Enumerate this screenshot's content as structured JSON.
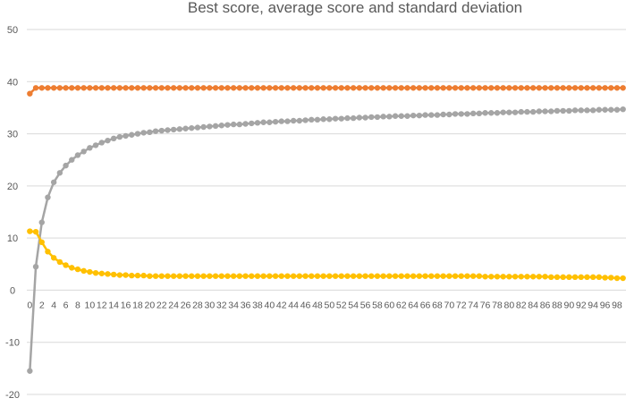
{
  "chart_data": {
    "type": "line",
    "title": "Best score, average score and standard deviation",
    "xlabel": "",
    "ylabel": "",
    "ylim": [
      -20,
      50
    ],
    "yticks": [
      -20,
      -10,
      0,
      10,
      20,
      30,
      40,
      50
    ],
    "grid": true,
    "legend": "none",
    "x_start": 0,
    "x_end": 99,
    "x_tick_labels": [
      "0",
      "2",
      "4",
      "6",
      "8",
      "10",
      "12",
      "14",
      "16",
      "18",
      "20",
      "22",
      "24",
      "26",
      "28",
      "30",
      "32",
      "34",
      "36",
      "38",
      "40",
      "42",
      "44",
      "46",
      "48",
      "50",
      "52",
      "54",
      "56",
      "58",
      "60",
      "62",
      "64",
      "66",
      "68",
      "70",
      "72",
      "74",
      "76",
      "78",
      "80",
      "82",
      "84",
      "86",
      "88",
      "90",
      "92",
      "94",
      "96",
      "98"
    ],
    "series": [
      {
        "color": "#ED7D31",
        "values": [
          37.7,
          38.8,
          38.8,
          38.8,
          38.8,
          38.8,
          38.8,
          38.8,
          38.8,
          38.8,
          38.8,
          38.8,
          38.8,
          38.8,
          38.8,
          38.8,
          38.8,
          38.8,
          38.8,
          38.8,
          38.8,
          38.8,
          38.8,
          38.8,
          38.8,
          38.8,
          38.8,
          38.8,
          38.8,
          38.8,
          38.8,
          38.8,
          38.8,
          38.8,
          38.8,
          38.8,
          38.8,
          38.8,
          38.8,
          38.8,
          38.8,
          38.8,
          38.8,
          38.8,
          38.8,
          38.8,
          38.8,
          38.8,
          38.8,
          38.8,
          38.8,
          38.8,
          38.8,
          38.8,
          38.8,
          38.8,
          38.8,
          38.8,
          38.8,
          38.8,
          38.8,
          38.8,
          38.8,
          38.8,
          38.8,
          38.8,
          38.8,
          38.8,
          38.8,
          38.8,
          38.8,
          38.8,
          38.8,
          38.8,
          38.8,
          38.8,
          38.8,
          38.8,
          38.8,
          38.8,
          38.8,
          38.8,
          38.8,
          38.8,
          38.8,
          38.8,
          38.8,
          38.8,
          38.8,
          38.8,
          38.8,
          38.8,
          38.8,
          38.8,
          38.8,
          38.8,
          38.8,
          38.8,
          38.8,
          38.8
        ]
      },
      {
        "color": "#A5A5A5",
        "values": [
          -15.5,
          4.5,
          13.0,
          17.8,
          20.7,
          22.5,
          23.9,
          25.0,
          25.9,
          26.6,
          27.3,
          27.8,
          28.3,
          28.7,
          29.1,
          29.4,
          29.6,
          29.8,
          30.0,
          30.2,
          30.3,
          30.5,
          30.6,
          30.7,
          30.8,
          30.9,
          31.0,
          31.1,
          31.2,
          31.3,
          31.4,
          31.5,
          31.6,
          31.7,
          31.8,
          31.8,
          31.9,
          32.0,
          32.1,
          32.2,
          32.2,
          32.3,
          32.4,
          32.4,
          32.5,
          32.5,
          32.6,
          32.7,
          32.7,
          32.8,
          32.8,
          32.9,
          32.9,
          33.0,
          33.0,
          33.1,
          33.1,
          33.2,
          33.2,
          33.3,
          33.3,
          33.4,
          33.4,
          33.4,
          33.5,
          33.5,
          33.6,
          33.6,
          33.6,
          33.7,
          33.7,
          33.8,
          33.8,
          33.8,
          33.9,
          33.9,
          34.0,
          34.0,
          34.0,
          34.1,
          34.1,
          34.1,
          34.2,
          34.2,
          34.2,
          34.3,
          34.3,
          34.3,
          34.4,
          34.4,
          34.4,
          34.5,
          34.5,
          34.5,
          34.5,
          34.6,
          34.6,
          34.6,
          34.6,
          34.7
        ]
      },
      {
        "color": "#FFC000",
        "values": [
          11.3,
          11.2,
          9.2,
          7.4,
          6.2,
          5.4,
          4.8,
          4.3,
          4.0,
          3.7,
          3.5,
          3.3,
          3.2,
          3.1,
          3.0,
          2.9,
          2.9,
          2.8,
          2.8,
          2.8,
          2.7,
          2.7,
          2.7,
          2.7,
          2.7,
          2.7,
          2.7,
          2.7,
          2.7,
          2.7,
          2.7,
          2.7,
          2.7,
          2.7,
          2.7,
          2.7,
          2.7,
          2.7,
          2.7,
          2.7,
          2.7,
          2.7,
          2.7,
          2.7,
          2.7,
          2.7,
          2.7,
          2.7,
          2.7,
          2.7,
          2.7,
          2.7,
          2.7,
          2.7,
          2.7,
          2.7,
          2.7,
          2.7,
          2.7,
          2.7,
          2.7,
          2.7,
          2.7,
          2.7,
          2.7,
          2.7,
          2.7,
          2.7,
          2.7,
          2.7,
          2.7,
          2.7,
          2.7,
          2.7,
          2.7,
          2.7,
          2.6,
          2.6,
          2.6,
          2.6,
          2.6,
          2.6,
          2.6,
          2.6,
          2.6,
          2.6,
          2.6,
          2.5,
          2.5,
          2.5,
          2.5,
          2.5,
          2.5,
          2.5,
          2.5,
          2.5,
          2.4,
          2.4,
          2.3,
          2.3
        ]
      }
    ]
  }
}
